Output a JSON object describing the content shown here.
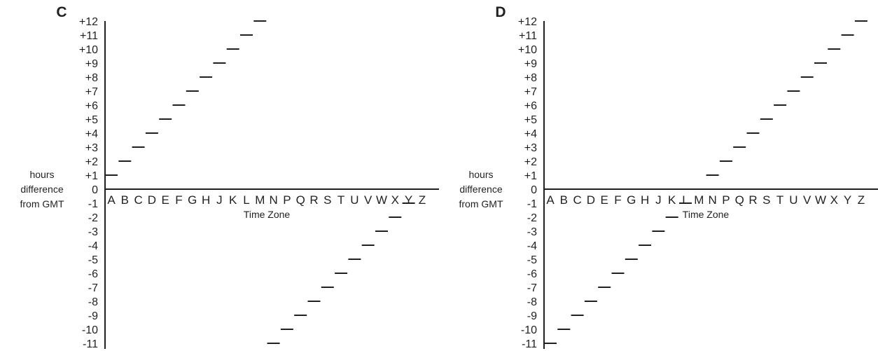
{
  "chart_data": [
    {
      "type": "scatter",
      "panel_label": "C",
      "ylabel_lines": [
        "hours",
        "difference",
        "from GMT"
      ],
      "xlabel": "Time Zone",
      "ylim": [
        -11,
        12
      ],
      "categories": [
        "A",
        "B",
        "C",
        "D",
        "E",
        "F",
        "G",
        "H",
        "J",
        "K",
        "L",
        "M",
        "N",
        "P",
        "Q",
        "R",
        "S",
        "T",
        "U",
        "V",
        "W",
        "X",
        "Y",
        "Z"
      ],
      "y_ticks": [
        "+12",
        "+11",
        "+10",
        "+9",
        "+8",
        "+7",
        "+6",
        "+5",
        "+4",
        "+3",
        "+2",
        "+1",
        "0",
        "-1",
        "-2",
        "-3",
        "-4",
        "-5",
        "-6",
        "-7",
        "-8",
        "-9",
        "-10",
        "-11"
      ],
      "values": [
        1,
        2,
        3,
        4,
        5,
        6,
        7,
        8,
        9,
        10,
        11,
        12,
        -11,
        -10,
        -9,
        -8,
        -7,
        -6,
        -5,
        -4,
        -3,
        -2,
        -1,
        0
      ],
      "marker": "horizontal-dash",
      "grid": false
    },
    {
      "type": "scatter",
      "panel_label": "D",
      "ylabel_lines": [
        "hours",
        "difference",
        "from GMT"
      ],
      "xlabel": "Time Zone",
      "ylim": [
        -11,
        12
      ],
      "categories": [
        "A",
        "B",
        "C",
        "D",
        "E",
        "F",
        "G",
        "H",
        "J",
        "K",
        "L",
        "M",
        "N",
        "P",
        "Q",
        "R",
        "S",
        "T",
        "U",
        "V",
        "W",
        "X",
        "Y",
        "Z"
      ],
      "y_ticks": [
        "+12",
        "+11",
        "+10",
        "+9",
        "+8",
        "+7",
        "+6",
        "+5",
        "+4",
        "+3",
        "+2",
        "+1",
        "0",
        "-1",
        "-2",
        "-3",
        "-4",
        "-5",
        "-6",
        "-7",
        "-8",
        "-9",
        "-10",
        "-11"
      ],
      "values": [
        -11,
        -10,
        -9,
        -8,
        -7,
        -6,
        -5,
        -4,
        -3,
        -2,
        -1,
        0,
        1,
        2,
        3,
        4,
        5,
        6,
        7,
        8,
        9,
        10,
        11,
        12
      ],
      "marker": "horizontal-dash",
      "grid": false
    }
  ]
}
